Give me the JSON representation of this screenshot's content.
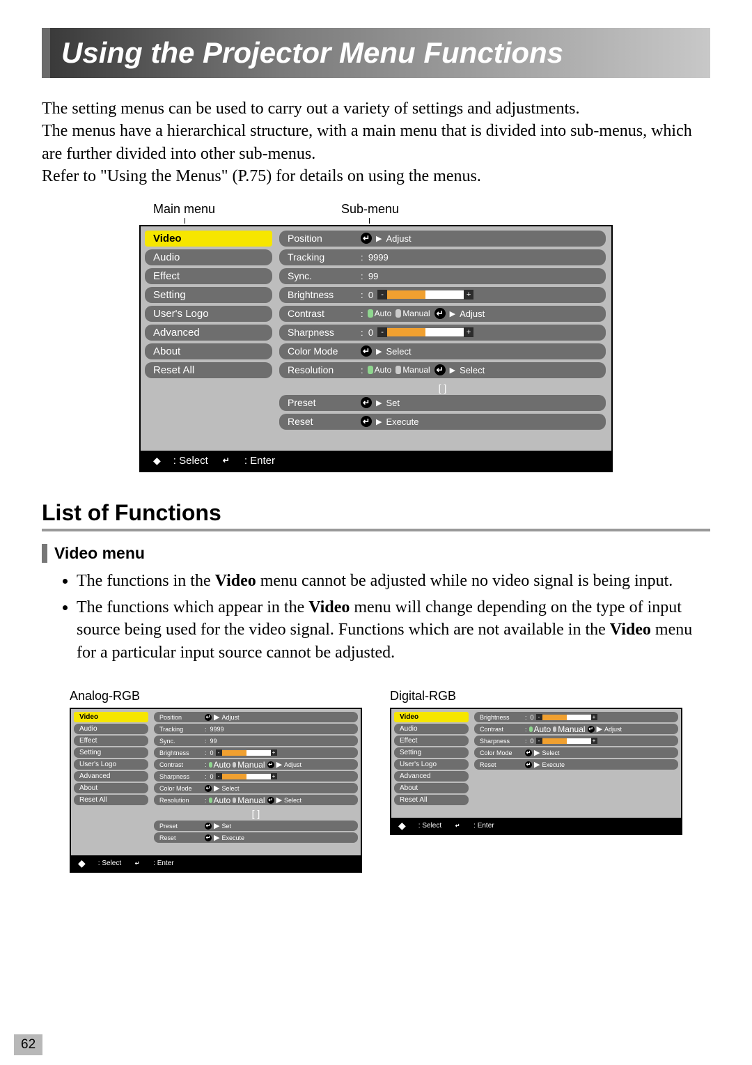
{
  "page": {
    "title": "Using the Projector Menu Functions",
    "intro1": "The setting menus can be used to carry out a variety of settings and adjustments.",
    "intro2": "The menus have a hierarchical structure, with a main menu that is divided into sub-menus, which are further divided into other sub-menus.",
    "intro3": "Refer to \"Using the Menus\" (P.75) for details on using the menus.",
    "label_main": "Main menu",
    "label_sub": "Sub-menu",
    "section": "List of Functions",
    "subsection": "Video menu",
    "bullets": [
      "The functions in the Video menu cannot be adjusted while no video signal is being input.",
      "The functions which appear in the Video menu will change depending on the type of input source being used for the video signal. Functions which are not available in the Video menu for a particular input source cannot be adjusted."
    ],
    "thumb1_label": "Analog-RGB",
    "thumb2_label": "Digital-RGB",
    "page_number": "62"
  },
  "colors": {
    "highlight": "#f6e600",
    "row_bg": "#6e6e6e",
    "panel_bg": "#bdbdbd",
    "slider_fill": "#f0a030"
  },
  "main_menu": {
    "items": [
      "Video",
      "Audio",
      "Effect",
      "Setting",
      "User's Logo",
      "Advanced",
      "About",
      "Reset All"
    ],
    "selected": 0
  },
  "sub_menu": {
    "rows": [
      {
        "label": "Position",
        "type": "enter",
        "action": "Adjust"
      },
      {
        "label": "Tracking",
        "type": "value",
        "value": "9999"
      },
      {
        "label": "Sync.",
        "type": "value",
        "value": "99"
      },
      {
        "label": "Brightness",
        "type": "slider",
        "value": "0",
        "fill_pct": 50
      },
      {
        "label": "Contrast",
        "type": "toggle",
        "opts": [
          "Auto",
          "Manual"
        ],
        "action": "Adjust"
      },
      {
        "label": "Sharpness",
        "type": "slider",
        "value": "0",
        "fill_pct": 50
      },
      {
        "label": "Color Mode",
        "type": "enter",
        "action": "Select"
      },
      {
        "label": "Resolution",
        "type": "toggle",
        "opts": [
          "Auto",
          "Manual"
        ],
        "action": "Select"
      }
    ],
    "bracket": "[                                      ]",
    "tail": [
      {
        "label": "Preset",
        "type": "enter",
        "action": "Set"
      },
      {
        "label": "Reset",
        "type": "enter",
        "action": "Execute"
      }
    ]
  },
  "footer": {
    "select": ": Select",
    "enter": ": Enter"
  },
  "thumb_digital_rows": [
    {
      "label": "Brightness",
      "type": "slider",
      "value": "0",
      "fill_pct": 50
    },
    {
      "label": "Contrast",
      "type": "toggle",
      "opts": [
        "Auto",
        "Manual"
      ],
      "action": "Adjust"
    },
    {
      "label": "Sharpness",
      "type": "slider",
      "value": "0",
      "fill_pct": 50
    },
    {
      "label": "Color Mode",
      "type": "enter",
      "action": "Select"
    },
    {
      "label": "Reset",
      "type": "enter",
      "action": "Execute"
    }
  ]
}
